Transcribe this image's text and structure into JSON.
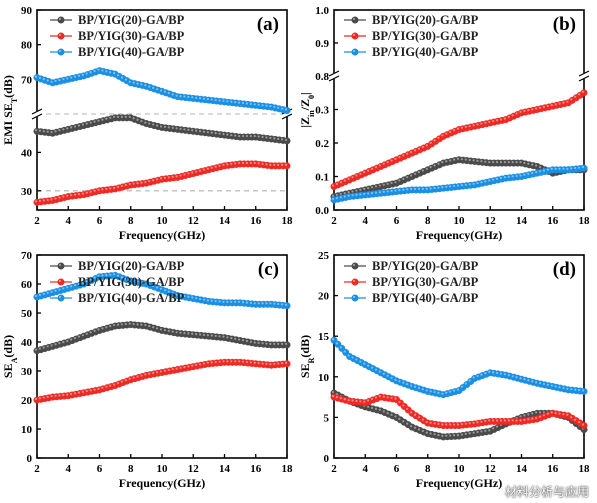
{
  "watermark": "材料分析与应用",
  "series_names": [
    "BP/YIG(20)-GA/BP",
    "BP/YIG(30)-GA/BP",
    "BP/YIG(40)-GA/BP"
  ],
  "colors": {
    "s20": "#4a4a4a",
    "s30": "#ee2a24",
    "s40": "#1a8fe3",
    "dashed": "#b4b4b4"
  },
  "chart_data": [
    {
      "id": "a",
      "label": "(a)",
      "type": "scatter",
      "xlabel": "Frequency(GHz)",
      "ylabel": "EMI SE_T(dB)",
      "xlim": [
        2,
        18
      ],
      "xticks": [
        2,
        4,
        6,
        8,
        10,
        12,
        14,
        16,
        18
      ],
      "broken_y": true,
      "y_lower": {
        "ylim": [
          25,
          50
        ],
        "ticks": [
          30,
          40
        ]
      },
      "y_upper": {
        "ylim": [
          60,
          90
        ],
        "ticks": [
          70,
          80,
          90
        ]
      },
      "reference_lines": [
        30,
        60
      ],
      "series": [
        {
          "name": "BP/YIG(20)-GA/BP",
          "x": [
            2,
            3,
            4,
            5,
            6,
            7,
            8,
            9,
            10,
            11,
            12,
            13,
            14,
            15,
            16,
            17,
            18
          ],
          "y": [
            45.5,
            45,
            46,
            47,
            48,
            49,
            49,
            47.5,
            46.5,
            46,
            45.5,
            45,
            44.5,
            44,
            44,
            43.5,
            43
          ]
        },
        {
          "name": "BP/YIG(30)-GA/BP",
          "x": [
            2,
            3,
            4,
            5,
            6,
            7,
            8,
            9,
            10,
            11,
            12,
            13,
            14,
            15,
            16,
            17,
            18
          ],
          "y": [
            27,
            27.5,
            28.5,
            29,
            30,
            30.5,
            31.5,
            32,
            33,
            33.5,
            34.5,
            35.5,
            36.5,
            37,
            37,
            36.5,
            36.5
          ]
        },
        {
          "name": "BP/YIG(40)-GA/BP",
          "x": [
            2,
            3,
            4,
            5,
            6,
            7,
            8,
            9,
            10,
            11,
            12,
            13,
            14,
            15,
            16,
            17,
            18
          ],
          "y": [
            70.5,
            69,
            70,
            71,
            72.5,
            71.5,
            69,
            68,
            66.5,
            65,
            64.5,
            64,
            63.5,
            63,
            62.5,
            62,
            61
          ]
        }
      ]
    },
    {
      "id": "b",
      "label": "(b)",
      "type": "scatter",
      "xlabel": "Frequency(GHz)",
      "ylabel": "|Z_in/Z_0|",
      "xlim": [
        2,
        18
      ],
      "xticks": [
        2,
        4,
        6,
        8,
        10,
        12,
        14,
        16,
        18
      ],
      "broken_y": true,
      "y_lower": {
        "ylim": [
          0,
          0.4
        ],
        "ticks": [
          0.0,
          0.1,
          0.2,
          0.3
        ]
      },
      "y_upper": {
        "ylim": [
          0.8,
          1.0
        ],
        "ticks": [
          0.8,
          0.9,
          1.0
        ]
      },
      "series": [
        {
          "name": "BP/YIG(20)-GA/BP",
          "x": [
            2,
            3,
            4,
            5,
            6,
            7,
            8,
            9,
            10,
            11,
            12,
            13,
            14,
            15,
            16,
            17,
            18
          ],
          "y": [
            0.04,
            0.05,
            0.06,
            0.07,
            0.08,
            0.1,
            0.12,
            0.14,
            0.15,
            0.145,
            0.14,
            0.14,
            0.14,
            0.13,
            0.11,
            0.12,
            0.12
          ]
        },
        {
          "name": "BP/YIG(30)-GA/BP",
          "x": [
            2,
            3,
            4,
            5,
            6,
            7,
            8,
            9,
            10,
            11,
            12,
            13,
            14,
            15,
            16,
            17,
            18
          ],
          "y": [
            0.07,
            0.09,
            0.11,
            0.13,
            0.15,
            0.17,
            0.19,
            0.22,
            0.24,
            0.25,
            0.26,
            0.27,
            0.29,
            0.3,
            0.31,
            0.32,
            0.35
          ]
        },
        {
          "name": "BP/YIG(40)-GA/BP",
          "x": [
            2,
            3,
            4,
            5,
            6,
            7,
            8,
            9,
            10,
            11,
            12,
            13,
            14,
            15,
            16,
            17,
            18
          ],
          "y": [
            0.03,
            0.04,
            0.045,
            0.05,
            0.055,
            0.06,
            0.06,
            0.065,
            0.07,
            0.075,
            0.085,
            0.095,
            0.1,
            0.11,
            0.12,
            0.12,
            0.125
          ]
        }
      ]
    },
    {
      "id": "c",
      "label": "(c)",
      "type": "scatter",
      "xlabel": "Frequency(GHz)",
      "ylabel": "SE_A(dB)",
      "xlim": [
        2,
        18
      ],
      "xticks": [
        2,
        4,
        6,
        8,
        10,
        12,
        14,
        16,
        18
      ],
      "ylim": [
        0,
        70
      ],
      "yticks": [
        0,
        10,
        20,
        30,
        40,
        50,
        60,
        70
      ],
      "series": [
        {
          "name": "BP/YIG(20)-GA/BP",
          "x": [
            2,
            3,
            4,
            5,
            6,
            7,
            8,
            9,
            10,
            11,
            12,
            13,
            14,
            15,
            16,
            17,
            18
          ],
          "y": [
            37,
            38.5,
            40,
            42,
            44,
            45.5,
            46,
            45.5,
            44,
            43,
            42.5,
            42,
            41.5,
            40.5,
            39.5,
            39,
            39
          ]
        },
        {
          "name": "BP/YIG(30)-GA/BP",
          "x": [
            2,
            3,
            4,
            5,
            6,
            7,
            8,
            9,
            10,
            11,
            12,
            13,
            14,
            15,
            16,
            17,
            18
          ],
          "y": [
            20,
            21,
            21.5,
            22.5,
            23.5,
            25,
            27,
            28.5,
            29.5,
            30.5,
            31.5,
            32.5,
            33,
            33,
            32.5,
            32,
            32.5
          ]
        },
        {
          "name": "BP/YIG(40)-GA/BP",
          "x": [
            2,
            3,
            4,
            5,
            6,
            7,
            8,
            9,
            10,
            11,
            12,
            13,
            14,
            15,
            16,
            17,
            18
          ],
          "y": [
            55.5,
            57,
            58.5,
            60,
            62.5,
            63,
            61,
            60,
            58,
            56,
            55,
            54,
            53.5,
            53.5,
            53,
            53,
            52.5
          ]
        }
      ]
    },
    {
      "id": "d",
      "label": "(d)",
      "type": "scatter",
      "xlabel": "Frequency(GHz)",
      "ylabel": "SE_R(dB)",
      "xlim": [
        2,
        18
      ],
      "xticks": [
        2,
        4,
        6,
        8,
        10,
        12,
        14,
        16,
        18
      ],
      "ylim": [
        0,
        25
      ],
      "yticks": [
        0,
        5,
        10,
        15,
        20,
        25
      ],
      "series": [
        {
          "name": "BP/YIG(20)-GA/BP",
          "x": [
            2,
            3,
            4,
            5,
            6,
            7,
            8,
            9,
            10,
            11,
            12,
            13,
            14,
            15,
            16,
            17,
            18
          ],
          "y": [
            8,
            7,
            6.3,
            5.8,
            5,
            3.8,
            3,
            2.6,
            2.7,
            3,
            3.3,
            4.2,
            5,
            5.5,
            5.5,
            5,
            3.5
          ]
        },
        {
          "name": "BP/YIG(30)-GA/BP",
          "x": [
            2,
            3,
            4,
            5,
            6,
            7,
            8,
            9,
            10,
            11,
            12,
            13,
            14,
            15,
            16,
            17,
            18
          ],
          "y": [
            7.5,
            7,
            6.8,
            7.5,
            7.2,
            5.5,
            4.3,
            4,
            4,
            4.2,
            4.5,
            4.5,
            4.5,
            4.8,
            5.5,
            5.2,
            4
          ]
        },
        {
          "name": "BP/YIG(40)-GA/BP",
          "x": [
            2,
            3,
            4,
            5,
            6,
            7,
            8,
            9,
            10,
            11,
            12,
            13,
            14,
            15,
            16,
            17,
            18
          ],
          "y": [
            14.5,
            12.5,
            11.5,
            10.5,
            9.5,
            8.8,
            8.2,
            7.8,
            8.3,
            9.8,
            10.5,
            10.2,
            9.7,
            9.2,
            8.8,
            8.4,
            8.2
          ]
        }
      ]
    }
  ]
}
